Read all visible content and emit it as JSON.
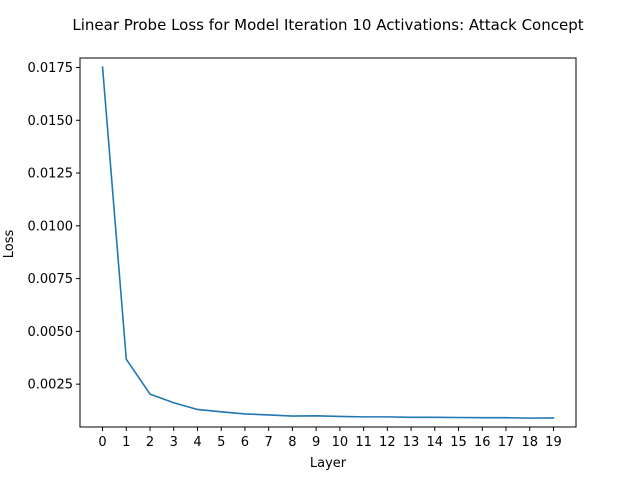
{
  "chart_data": {
    "type": "line",
    "title": "Linear Probe Loss for Model Iteration 10 Activations: Attack Concept",
    "xlabel": "Layer",
    "ylabel": "Loss",
    "x": [
      0,
      1,
      2,
      3,
      4,
      5,
      6,
      7,
      8,
      9,
      10,
      11,
      12,
      13,
      14,
      15,
      16,
      17,
      18,
      19
    ],
    "series": [
      {
        "values": [
          0.01752,
          0.00368,
          0.00203,
          0.00162,
          0.0013,
          0.00119,
          0.00109,
          0.00104,
          0.00099,
          0.001,
          0.00097,
          0.00095,
          0.00095,
          0.00093,
          0.00093,
          0.00092,
          0.00091,
          0.00091,
          0.00089,
          0.0009
        ],
        "color": "#1f77b4"
      }
    ],
    "xticks": [
      "0",
      "1",
      "2",
      "3",
      "4",
      "5",
      "6",
      "7",
      "8",
      "9",
      "10",
      "11",
      "12",
      "13",
      "14",
      "15",
      "16",
      "17",
      "18",
      "19"
    ],
    "yticks": [
      0.0025,
      0.005,
      0.0075,
      0.01,
      0.0125,
      0.015,
      0.0175
    ],
    "ytick_labels": [
      "0.0025",
      "0.0050",
      "0.0075",
      "0.0100",
      "0.0125",
      "0.0150",
      "0.0175"
    ],
    "xlim": [
      -0.95,
      19.95
    ],
    "ylim": [
      0.00047,
      0.01795
    ],
    "grid": false
  }
}
